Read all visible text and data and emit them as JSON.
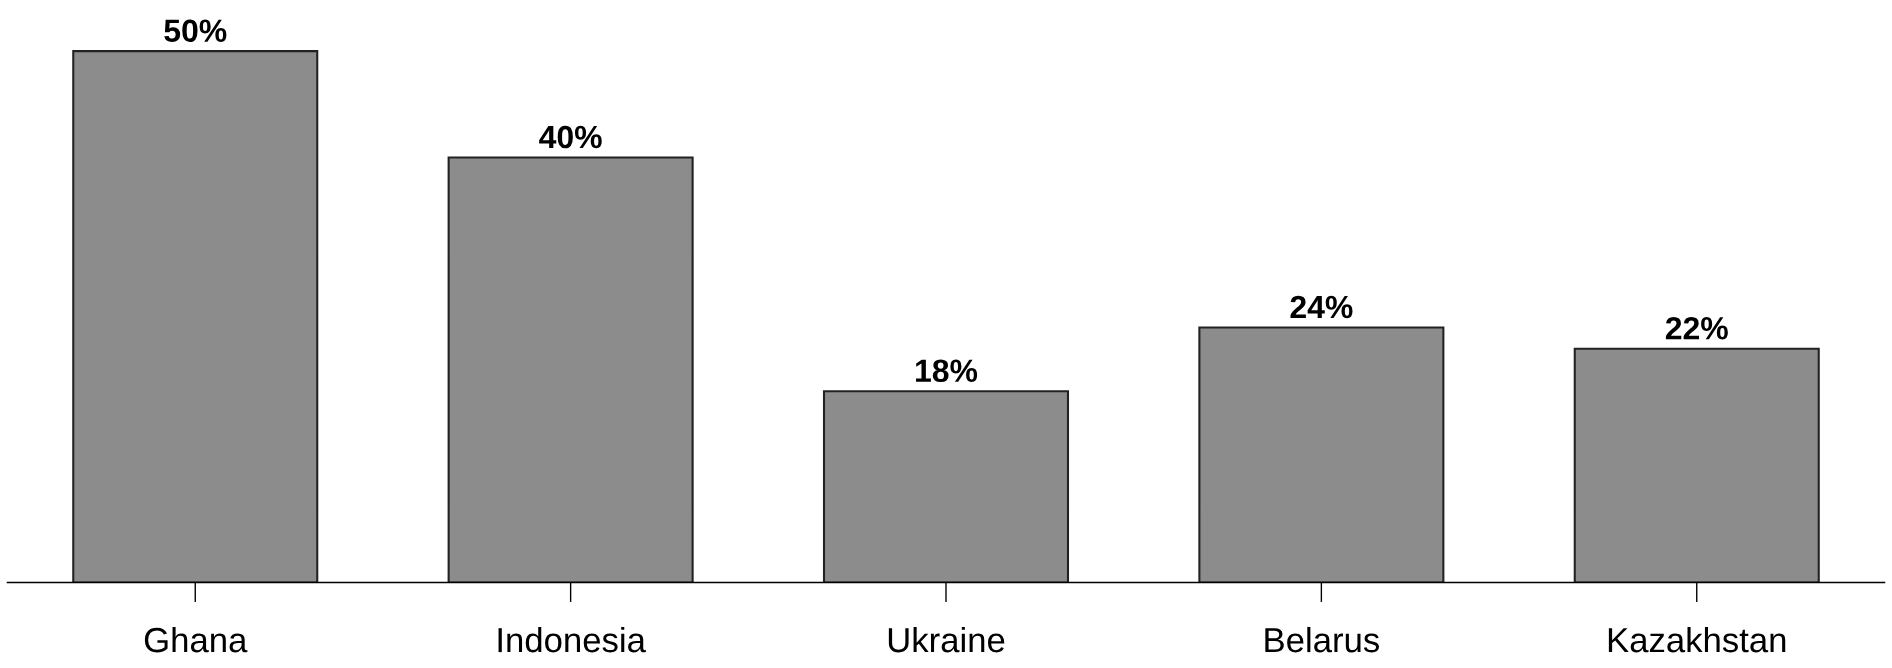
{
  "chart_data": {
    "type": "bar",
    "categories": [
      "Ghana",
      "Indonesia",
      "Ukraine",
      "Belarus",
      "Kazakhstan"
    ],
    "values": [
      50,
      40,
      18,
      24,
      22
    ],
    "value_labels": [
      "50%",
      "40%",
      "18%",
      "24%",
      "22%"
    ],
    "color": "#8c8c8c",
    "grid": false
  }
}
